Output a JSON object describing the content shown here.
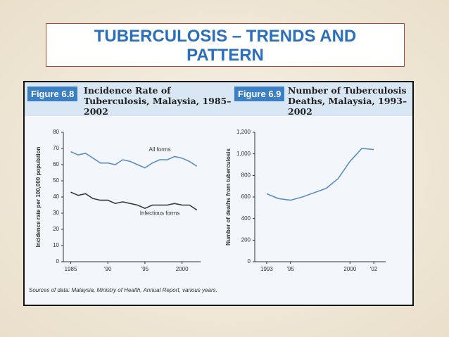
{
  "slide_title": "TUBERCULOSIS – TRENDS AND PATTERN",
  "source": "Sources of data: Malaysia, Ministry of Health, Annual Report, various years.",
  "chart_data": [
    {
      "type": "line",
      "figure": "Figure 6.8",
      "title": "Incidence Rate of Tuberculosis, Malaysia, 1985–2002",
      "y_label": "Incidence rate per 100,000 population",
      "x": [
        1985,
        1986,
        1987,
        1988,
        1989,
        1990,
        1991,
        1992,
        1993,
        1994,
        1995,
        1996,
        1997,
        1998,
        1999,
        2000,
        2001,
        2002
      ],
      "series": [
        {
          "name": "All forms",
          "color": "#5b8fc7",
          "values": [
            68,
            66,
            67,
            64,
            61,
            61,
            60,
            63,
            62,
            60,
            58,
            61,
            63,
            63,
            65,
            64,
            62,
            59
          ]
        },
        {
          "name": "Infectious forms",
          "color": "#3a3a3a",
          "values": [
            43,
            41,
            42,
            39,
            38,
            38,
            36,
            37,
            36,
            35,
            33,
            35,
            35,
            35,
            36,
            35,
            35,
            32
          ]
        }
      ],
      "xlim": [
        1984,
        2002.5
      ],
      "ylim": [
        0,
        80
      ],
      "xticks": [
        1985,
        {
          "value": 1990,
          "label": "'90"
        },
        {
          "value": 1995,
          "label": "'95"
        },
        2000
      ],
      "yticks": [
        0,
        10,
        20,
        30,
        40,
        50,
        60,
        70,
        80
      ]
    },
    {
      "type": "line",
      "figure": "Figure 6.9",
      "title": "Number of Tuberculosis Deaths, Malaysia, 1993–2002",
      "y_label": "Number of deaths from tuberculosis",
      "x": [
        1993,
        1994,
        1995,
        1996,
        1997,
        1998,
        1999,
        2000,
        2001,
        2002
      ],
      "values": [
        630,
        585,
        570,
        600,
        640,
        680,
        770,
        930,
        1050,
        1040
      ],
      "color": "#5b8fc7",
      "xlim": [
        1992,
        2003
      ],
      "ylim": [
        0,
        1200
      ],
      "xticks": [
        1993,
        {
          "value": 1995,
          "label": "'95"
        },
        2000,
        {
          "value": 2002,
          "label": "'02"
        }
      ],
      "yticks": [
        0,
        200,
        400,
        600,
        800,
        {
          "value": 1000,
          "label": "1,000"
        },
        {
          "value": 1200,
          "label": "1,200"
        }
      ]
    }
  ]
}
